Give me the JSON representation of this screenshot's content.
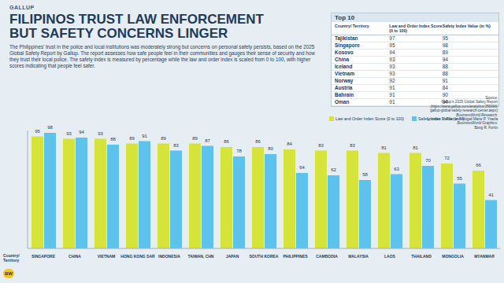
{
  "header": {
    "brand": "GALLUP",
    "title": [
      "FILIPINOS TRUST LAW ENFORCEMENT",
      "BUT SAFETY CONCERNS LINGER"
    ],
    "description": "The Philippines' trust in the police and local institutions was moderately strong but concerns on personal safety persists, based on the 2025 Global Safety Report by Gallup. The report assesses how safe people feel in their communities and gauges their sense of security and how they trust their local police. The safety index is measured by percentage while the law and order index is scaled from 0 to 100, with higher scores indicating that people feel safer."
  },
  "top10": {
    "title": "Top 10",
    "columns": [
      "Country/ Territory",
      "Law and Order Index Score (0 to 100)",
      "Safety Index Value (in %)"
    ],
    "rows": [
      [
        "Tajikistan",
        97,
        95
      ],
      [
        "Singapore",
        95,
        98
      ],
      [
        "Kosovo",
        94,
        89
      ],
      [
        "China",
        93,
        94
      ],
      [
        "Iceland",
        93,
        88
      ],
      [
        "Vietnam",
        93,
        88
      ],
      [
        "Norway",
        92,
        91
      ],
      [
        "Austria",
        91,
        84
      ],
      [
        "Bahrain",
        91,
        90
      ],
      [
        "Oman",
        91,
        94
      ]
    ]
  },
  "source": [
    "Source:",
    "Gallup's 2025 Global Safety Report",
    "(https://www.gallup.com/analytics/356996/",
    "gallup-global-safety-research-center.aspx)",
    "BusinessWorld Research:",
    "Lourdes O. Pilar and Abigail Marie P. Yraola",
    "BusinessWorld Graphics:",
    "Bong R. Fortin"
  ],
  "logo": "BW",
  "axis_caption": [
    "Country/",
    "Territory"
  ],
  "chart_data": {
    "type": "bar",
    "categories": [
      "SINGAPORE",
      "CHINA",
      "VIETNAM",
      "HONG KONG SAR",
      "INDONESIA",
      "TAIWAN, CHN",
      "JAPAN",
      "SOUTH KOREA",
      "PHILIPPINES",
      "CAMBODIA",
      "MALAYSIA",
      "LAOS",
      "THAILAND",
      "MONGOLIA",
      "MYANMAR"
    ],
    "series": [
      {
        "name": "Law and Order Index Score (0 to 100)",
        "color": "#d6e33a",
        "values": [
          95,
          93,
          93,
          89,
          89,
          89,
          86,
          86,
          84,
          83,
          83,
          81,
          81,
          72,
          66
        ]
      },
      {
        "name": "Safety Index Value (in %)",
        "color": "#5ec3ec",
        "values": [
          98,
          94,
          88,
          91,
          83,
          87,
          78,
          80,
          64,
          62,
          58,
          63,
          70,
          55,
          41
        ]
      }
    ],
    "ylim": [
      0,
      100
    ],
    "yticks": [
      0,
      100
    ],
    "data_labels": true,
    "tick_labels": "x"
  }
}
